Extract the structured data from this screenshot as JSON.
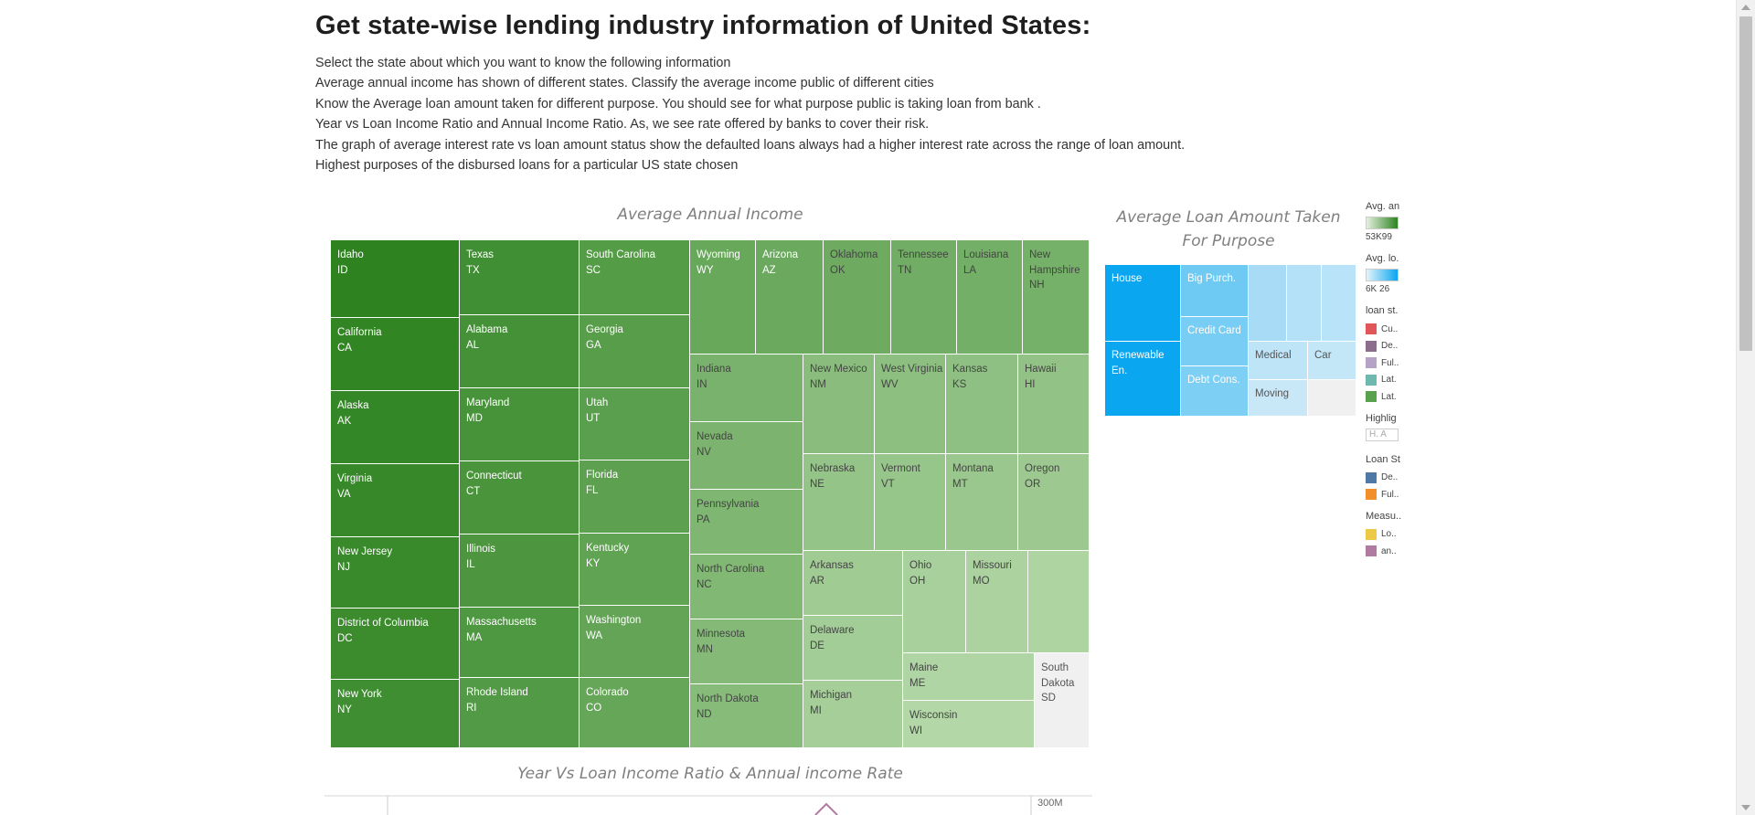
{
  "page": {
    "title": "Get state-wise lending industry information of United States:",
    "lines": [
      "Select the state about which you want to know the following information",
      "Average annual income has shown of different states. Classify the average income public of different cities",
      "Know the Average loan amount taken for different purpose. You should see for what purpose public is taking loan from bank .",
      "Year vs Loan Income Ratio and Annual Income Ratio. As, we see rate offered by banks to cover their risk.",
      "The graph of average interest rate vs loan amount status show the defaulted loans always had a higher interest rate across the range of loan amount.",
      "Highest purposes of the disbursed loans for a particular US state chosen"
    ]
  },
  "income_chart": {
    "title": "Average Annual Income",
    "color_high": "#2e8320",
    "color_low": "#b6d9aa",
    "states": [
      {
        "name": "Idaho",
        "code": "ID",
        "rank": 1
      },
      {
        "name": "California",
        "code": "CA",
        "rank": 2
      },
      {
        "name": "Alaska",
        "code": "AK",
        "rank": 3
      },
      {
        "name": "Virginia",
        "code": "VA",
        "rank": 4
      },
      {
        "name": "New Jersey",
        "code": "NJ",
        "rank": 5
      },
      {
        "name": "District of Columbia",
        "code": "DC",
        "rank": 6
      },
      {
        "name": "New York",
        "code": "NY",
        "rank": 7
      },
      {
        "name": "Texas",
        "code": "TX",
        "rank": 8
      },
      {
        "name": "Alabama",
        "code": "AL",
        "rank": 9
      },
      {
        "name": "Maryland",
        "code": "MD",
        "rank": 10
      },
      {
        "name": "Connecticut",
        "code": "CT",
        "rank": 11
      },
      {
        "name": "Illinois",
        "code": "IL",
        "rank": 12
      },
      {
        "name": "Massachusetts",
        "code": "MA",
        "rank": 13
      },
      {
        "name": "Rhode Island",
        "code": "RI",
        "rank": 14
      },
      {
        "name": "South Carolina",
        "code": "SC",
        "rank": 15
      },
      {
        "name": "Georgia",
        "code": "GA",
        "rank": 16
      },
      {
        "name": "Utah",
        "code": "UT",
        "rank": 17
      },
      {
        "name": "Florida",
        "code": "FL",
        "rank": 18
      },
      {
        "name": "Kentucky",
        "code": "KY",
        "rank": 19
      },
      {
        "name": "Washington",
        "code": "WA",
        "rank": 20
      },
      {
        "name": "Colorado",
        "code": "CO",
        "rank": 21
      },
      {
        "name": "Wyoming",
        "code": "WY",
        "rank": 22
      },
      {
        "name": "Arizona",
        "code": "AZ",
        "rank": 23
      },
      {
        "name": "Oklahoma",
        "code": "OK",
        "rank": 24
      },
      {
        "name": "Tennessee",
        "code": "TN",
        "rank": 25
      },
      {
        "name": "Louisiana",
        "code": "LA",
        "rank": 26
      },
      {
        "name": "New Hampshire",
        "code": "NH",
        "rank": 27
      },
      {
        "name": "Indiana",
        "code": "IN",
        "rank": 28
      },
      {
        "name": "Nevada",
        "code": "NV",
        "rank": 29
      },
      {
        "name": "Pennsylvania",
        "code": "PA",
        "rank": 30
      },
      {
        "name": "North Carolina",
        "code": "NC",
        "rank": 31
      },
      {
        "name": "Minnesota",
        "code": "MN",
        "rank": 32
      },
      {
        "name": "North Dakota",
        "code": "ND",
        "rank": 33
      },
      {
        "name": "New Mexico",
        "code": "NM",
        "rank": 34
      },
      {
        "name": "West Virginia",
        "code": "WV",
        "rank": 35
      },
      {
        "name": "Kansas",
        "code": "KS",
        "rank": 36
      },
      {
        "name": "Hawaii",
        "code": "HI",
        "rank": 37
      },
      {
        "name": "Nebraska",
        "code": "NE",
        "rank": 38
      },
      {
        "name": "Vermont",
        "code": "VT",
        "rank": 39
      },
      {
        "name": "Montana",
        "code": "MT",
        "rank": 40
      },
      {
        "name": "Oregon",
        "code": "OR",
        "rank": 41
      },
      {
        "name": "Arkansas",
        "code": "AR",
        "rank": 42
      },
      {
        "name": "Delaware",
        "code": "DE",
        "rank": 43
      },
      {
        "name": "Michigan",
        "code": "MI",
        "rank": 44
      },
      {
        "name": "Ohio",
        "code": "OH",
        "rank": 45
      },
      {
        "name": "Missouri",
        "code": "MO",
        "rank": 46
      },
      {
        "name": "",
        "code": "",
        "rank": 47
      },
      {
        "name": "Maine",
        "code": "ME",
        "rank": 48
      },
      {
        "name": "Wisconsin",
        "code": "WI",
        "rank": 49
      },
      {
        "name": "South Dakota",
        "code": "SD",
        "rank": 50,
        "highlight_off": true
      }
    ]
  },
  "purpose_chart": {
    "title_line1": "Average Loan Amount  Taken",
    "title_line2": "For Purpose",
    "purposes": [
      {
        "label": "House",
        "color": "#0aa6ef",
        "text_color": "#ffffff"
      },
      {
        "label": "Renewable En.",
        "color": "#0aa6ef",
        "text_color": "#ffffff"
      },
      {
        "label": "Big Purch.",
        "color": "#6fcaf3",
        "text_color": "#ffffff"
      },
      {
        "label": "Credit Card",
        "color": "#77cdf4",
        "text_color": "#ffffff"
      },
      {
        "label": "Debt Cons.",
        "color": "#7dcff4",
        "text_color": "#ffffff"
      },
      {
        "label": "",
        "color": "#a8dcf6",
        "text_color": "#ffffff"
      },
      {
        "label": "",
        "color": "#b4e1f7",
        "text_color": "#ffffff"
      },
      {
        "label": "",
        "color": "#b9e3f8",
        "text_color": "#ffffff"
      },
      {
        "label": "Medical",
        "color": "#bde4f7",
        "text_color": "#555555"
      },
      {
        "label": "Car",
        "color": "#c4e7f8",
        "text_color": "#555555"
      },
      {
        "label": "Moving",
        "color": "#c8e8f8",
        "text_color": "#555555"
      },
      {
        "label": "",
        "color": "#f0f0f0",
        "text_color": "#555555"
      }
    ]
  },
  "legend": {
    "income_title": "Avg. an",
    "income_range": "53K99",
    "loan_title": "Avg. lo.",
    "loan_range": "6K   26",
    "loan_status_title": "loan st.",
    "loan_status_items": [
      {
        "label": "Cu..",
        "color": "#e15759"
      },
      {
        "label": "De..",
        "color": "#8b6d8e"
      },
      {
        "label": "Ful..",
        "color": "#b7a2c7"
      },
      {
        "label": "Lat.",
        "color": "#6fb8b0"
      },
      {
        "label": "Lat.",
        "color": "#59a14f"
      }
    ],
    "highlight_title": "Highlig",
    "highlight_placeholder": "H.   A",
    "loan_status2_title": "Loan St",
    "loan_status2_items": [
      {
        "label": "De..",
        "color": "#4e79a7"
      },
      {
        "label": "Ful..",
        "color": "#f28e2b"
      }
    ],
    "measure_title": "Measu..",
    "measure_items": [
      {
        "label": "Lo..",
        "color": "#edc948"
      },
      {
        "label": "an..",
        "color": "#b07aa1"
      }
    ]
  },
  "bottom_chart": {
    "title": "Year Vs Loan Income Ratio & Annual income Rate",
    "right_axis_top": "300M"
  }
}
